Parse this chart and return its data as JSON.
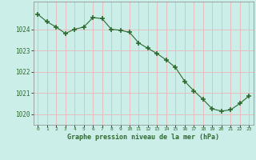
{
  "x": [
    0,
    1,
    2,
    3,
    4,
    5,
    6,
    7,
    8,
    9,
    10,
    11,
    12,
    13,
    14,
    15,
    16,
    17,
    18,
    19,
    20,
    21,
    22,
    23
  ],
  "y": [
    1024.7,
    1024.35,
    1024.1,
    1023.8,
    1024.0,
    1024.1,
    1024.55,
    1024.5,
    1024.0,
    1023.95,
    1023.85,
    1023.35,
    1023.1,
    1022.85,
    1022.55,
    1022.2,
    1021.55,
    1021.1,
    1020.7,
    1020.25,
    1020.15,
    1020.2,
    1020.5,
    1020.85
  ],
  "line_color": "#2d6a2d",
  "marker_color": "#2d6a2d",
  "bg_color": "#cceee8",
  "grid_color_major": "#e8b8b8",
  "grid_color_minor": "#e8b8b8",
  "tick_label_color": "#2d6a2d",
  "xlabel": "Graphe pression niveau de la mer (hPa)",
  "xlabel_color": "#2d6a2d",
  "ylim": [
    1019.5,
    1025.3
  ],
  "yticks": [
    1020,
    1021,
    1022,
    1023,
    1024
  ],
  "xlim": [
    -0.5,
    23.5
  ],
  "xticks": [
    0,
    1,
    2,
    3,
    4,
    5,
    6,
    7,
    8,
    9,
    10,
    11,
    12,
    13,
    14,
    15,
    16,
    17,
    18,
    19,
    20,
    21,
    22,
    23
  ]
}
